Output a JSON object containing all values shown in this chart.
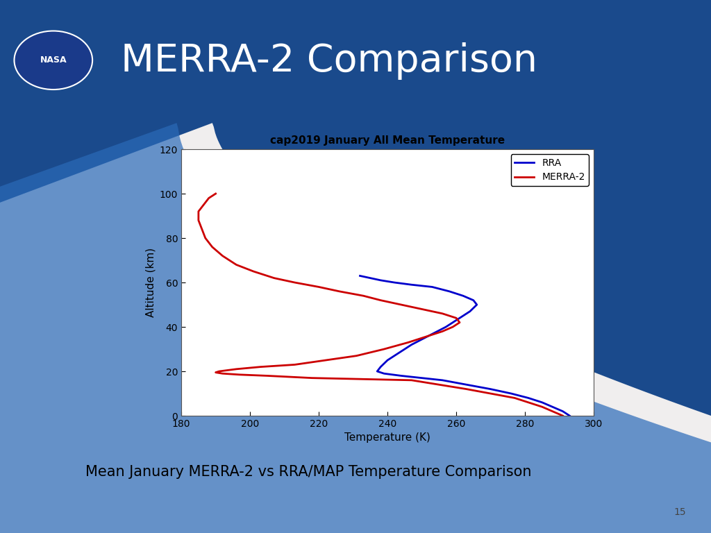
{
  "title": "cap2019 January All Mean Temperature",
  "xlabel": "Temperature (K)",
  "ylabel": "Altitude (km)",
  "xlim": [
    180,
    300
  ],
  "ylim": [
    0,
    120
  ],
  "xticks": [
    180,
    200,
    220,
    240,
    260,
    280,
    300
  ],
  "yticks": [
    0,
    20,
    40,
    60,
    80,
    100,
    120
  ],
  "slide_title": "MERRA-2 Comparison",
  "footer_text": "Mean January MERRA-2 vs RRA/MAP Temperature Comparison",
  "page_number": "15",
  "rra_color": "#0000CC",
  "merra2_color": "#CC0000",
  "slide_bg": "#f0eeee",
  "header_dark": "#0a1550",
  "header_mid": "#1a4a8c",
  "header_light": "#2a6ab8",
  "rra_temp": [
    293,
    291,
    288,
    285,
    281,
    276,
    270,
    263,
    256,
    250,
    244,
    239,
    237,
    238,
    240,
    243,
    247,
    252,
    257,
    261,
    264,
    266,
    265,
    262,
    258,
    253,
    247,
    242,
    238,
    235,
    232
  ],
  "rra_alt": [
    0,
    2,
    4,
    6,
    8,
    10,
    12,
    14,
    16,
    17,
    18,
    19,
    20,
    22,
    25,
    28,
    32,
    36,
    40,
    44,
    47,
    50,
    52,
    54,
    56,
    58,
    59,
    60,
    61,
    62,
    63
  ],
  "merra2_temp": [
    291,
    288,
    285,
    281,
    277,
    270,
    263,
    255,
    247,
    218,
    205,
    197,
    192,
    190,
    191,
    196,
    203,
    213,
    222,
    231,
    239,
    246,
    252,
    256,
    259,
    261,
    260,
    256,
    250,
    244,
    238,
    233,
    226,
    220,
    213,
    207,
    201,
    196,
    192,
    189,
    187,
    186,
    185,
    185,
    185,
    186,
    187,
    188,
    189,
    190
  ],
  "merra2_alt": [
    0,
    2,
    4,
    6,
    8,
    10,
    12,
    14,
    16,
    17,
    18,
    18.5,
    19,
    19.5,
    20,
    21,
    22,
    23,
    25,
    27,
    30,
    33,
    36,
    38,
    40,
    42,
    44,
    46,
    48,
    50,
    52,
    54,
    56,
    58,
    60,
    62,
    65,
    68,
    72,
    76,
    80,
    84,
    88,
    90,
    92,
    94,
    96,
    98,
    99,
    100
  ]
}
